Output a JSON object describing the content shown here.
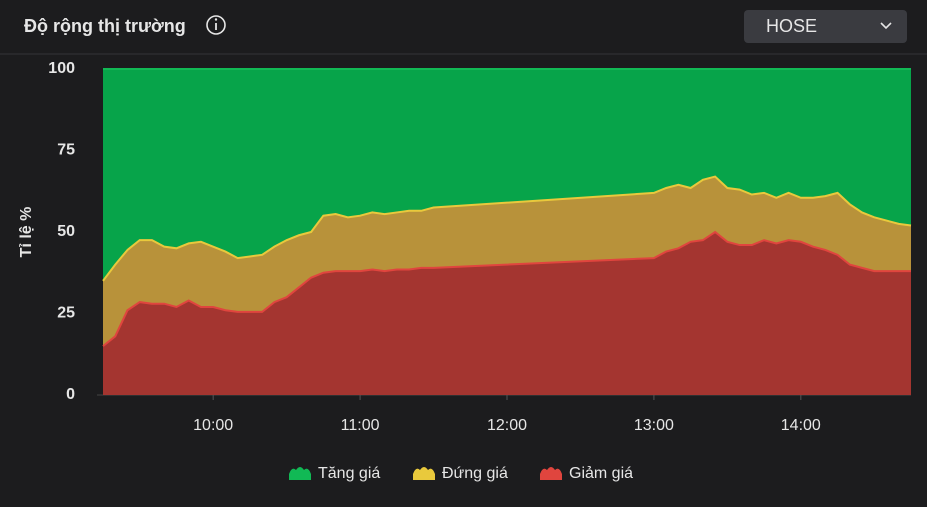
{
  "exchange_selector": "HOSE",
  "chart_data": {
    "type": "stacked-area",
    "title": "Độ rộng thị trường",
    "y_label": "Tỉ lệ %",
    "x": [
      "09:15",
      "09:20",
      "09:25",
      "09:30",
      "09:35",
      "09:40",
      "09:45",
      "09:50",
      "09:55",
      "10:00",
      "10:05",
      "10:10",
      "10:15",
      "10:20",
      "10:25",
      "10:30",
      "10:35",
      "10:40",
      "10:45",
      "10:50",
      "10:55",
      "11:00",
      "11:05",
      "11:10",
      "11:15",
      "11:20",
      "11:25",
      "11:30",
      "13:00",
      "13:05",
      "13:10",
      "13:15",
      "13:20",
      "13:25",
      "13:30",
      "13:35",
      "13:40",
      "13:45",
      "13:50",
      "13:55",
      "14:00",
      "14:05",
      "14:10",
      "14:15",
      "14:20",
      "14:25",
      "14:30",
      "14:35",
      "14:40",
      "14:45"
    ],
    "xlim": [
      "09:15",
      "14:45"
    ],
    "xticks": [
      "10:00",
      "11:00",
      "12:00",
      "13:00",
      "14:00"
    ],
    "ylim": [
      0,
      100
    ],
    "yticks": [
      0,
      25,
      50,
      75,
      100
    ],
    "series": [
      {
        "name": "Tăng giá",
        "color": "#07a44a",
        "line_color": "#11b955",
        "values": [
          65,
          60,
          55.5,
          52.5,
          52.5,
          54.5,
          55,
          53.5,
          53,
          54.5,
          56,
          58,
          57.5,
          57,
          54.5,
          52.5,
          51,
          50,
          45,
          44.5,
          45.5,
          45,
          44,
          44.5,
          44,
          43.5,
          43.5,
          42.5,
          38,
          36.5,
          35.5,
          36.5,
          34,
          33,
          36.5,
          37,
          38.5,
          38,
          39.5,
          38,
          39.5,
          39.5,
          39,
          38,
          41.5,
          44,
          45.5,
          46.5,
          47.5,
          48
        ]
      },
      {
        "name": "Đứng giá",
        "color": "#b8923a",
        "line_color": "#e9c93c",
        "values": [
          20,
          22,
          18.5,
          19,
          19.5,
          17.5,
          18,
          17.5,
          20,
          18.5,
          18,
          16.5,
          17,
          17.5,
          17,
          17.5,
          16,
          14,
          17.5,
          17.5,
          16.5,
          17,
          17.5,
          17.5,
          17.5,
          18,
          17.5,
          18.5,
          20,
          19.5,
          19.5,
          16.5,
          18.5,
          17,
          16.5,
          17,
          15.5,
          14.5,
          14,
          14.5,
          13.5,
          15,
          16.5,
          19,
          18.5,
          17,
          16.5,
          15.5,
          14.5,
          14
        ]
      },
      {
        "name": "Giảm giá",
        "color": "#a43530",
        "line_color": "#e0453e",
        "values": [
          15,
          18,
          26,
          28.5,
          28,
          28,
          27,
          29,
          27,
          27,
          26,
          25.5,
          25.5,
          25.5,
          28.5,
          30,
          33,
          36,
          37.5,
          38,
          38,
          38,
          38.5,
          38,
          38.5,
          38.5,
          39,
          39,
          42,
          44,
          45,
          47,
          47.5,
          50,
          47,
          46,
          46,
          47.5,
          46.5,
          47.5,
          47,
          45.5,
          44.5,
          43,
          40,
          39,
          38,
          38,
          38,
          38
        ]
      }
    ]
  }
}
